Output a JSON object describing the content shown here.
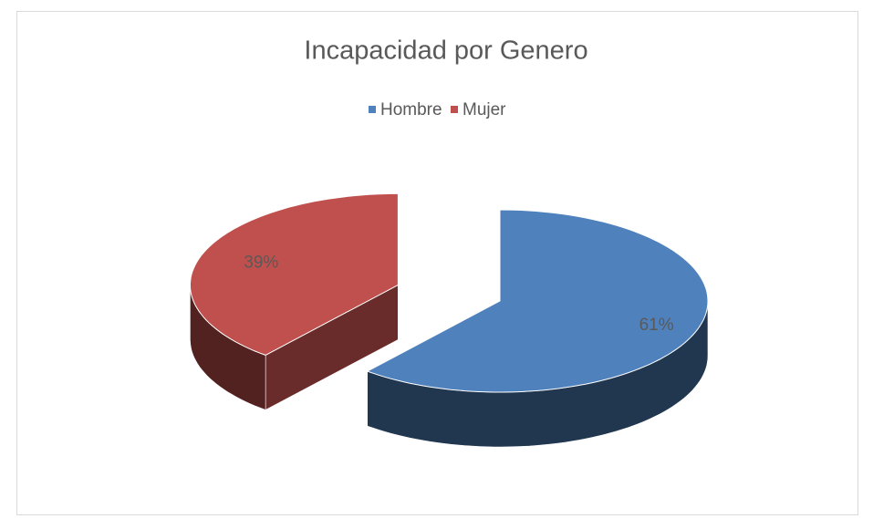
{
  "chart_data": {
    "type": "pie",
    "title": "Incapacidad por Genero",
    "categories": [
      "Hombre",
      "Mujer"
    ],
    "values": [
      61,
      39
    ],
    "value_labels": [
      "61%",
      "39%"
    ],
    "colors": [
      "#4f81bd",
      "#c0504d"
    ],
    "legend": "top"
  }
}
